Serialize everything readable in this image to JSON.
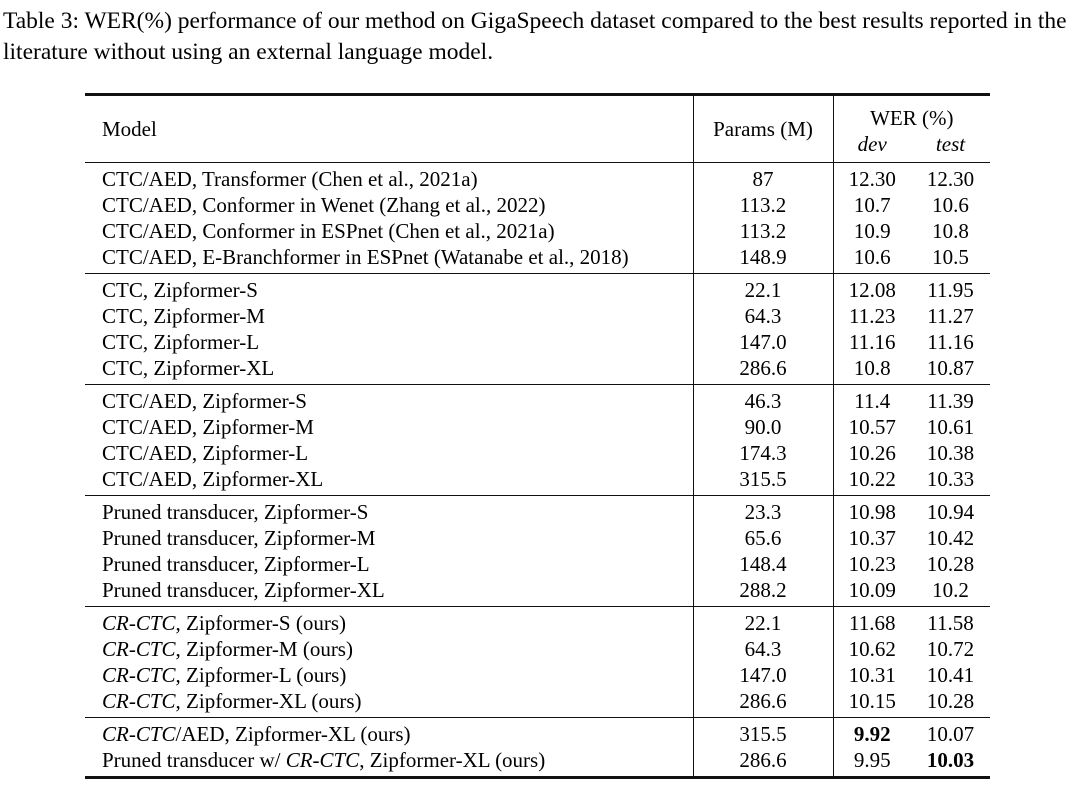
{
  "caption": "Table 3: WER(%) performance of our method on GigaSpeech dataset compared to the best results reported in the literature without using an external language model.",
  "table": {
    "headers": {
      "model": "Model",
      "params": "Params (M)",
      "wer": "WER (%)",
      "dev": "dev",
      "test": "test"
    },
    "groups": [
      {
        "rows": [
          {
            "model": [
              {
                "text": "CTC/AED, Transformer (Chen et al., 2021a)"
              }
            ],
            "params": "87",
            "dev": "12.30",
            "test": "12.30"
          },
          {
            "model": [
              {
                "text": "CTC/AED, Conformer in Wenet (Zhang et al., 2022)"
              }
            ],
            "params": "113.2",
            "dev": "10.7",
            "test": "10.6"
          },
          {
            "model": [
              {
                "text": "CTC/AED, Conformer in ESPnet (Chen et al., 2021a)"
              }
            ],
            "params": "113.2",
            "dev": "10.9",
            "test": "10.8"
          },
          {
            "model": [
              {
                "text": "CTC/AED, E-Branchformer in ESPnet (Watanabe et al., 2018)"
              }
            ],
            "params": "148.9",
            "dev": "10.6",
            "test": "10.5"
          }
        ]
      },
      {
        "rows": [
          {
            "model": [
              {
                "text": "CTC, Zipformer-S"
              }
            ],
            "params": "22.1",
            "dev": "12.08",
            "test": "11.95"
          },
          {
            "model": [
              {
                "text": "CTC, Zipformer-M"
              }
            ],
            "params": "64.3",
            "dev": "11.23",
            "test": "11.27"
          },
          {
            "model": [
              {
                "text": "CTC, Zipformer-L"
              }
            ],
            "params": "147.0",
            "dev": "11.16",
            "test": "11.16"
          },
          {
            "model": [
              {
                "text": "CTC, Zipformer-XL"
              }
            ],
            "params": "286.6",
            "dev": "10.8",
            "test": "10.87"
          }
        ]
      },
      {
        "rows": [
          {
            "model": [
              {
                "text": "CTC/AED, Zipformer-S"
              }
            ],
            "params": "46.3",
            "dev": "11.4",
            "test": "11.39"
          },
          {
            "model": [
              {
                "text": "CTC/AED, Zipformer-M"
              }
            ],
            "params": "90.0",
            "dev": "10.57",
            "test": "10.61"
          },
          {
            "model": [
              {
                "text": "CTC/AED, Zipformer-L"
              }
            ],
            "params": "174.3",
            "dev": "10.26",
            "test": "10.38"
          },
          {
            "model": [
              {
                "text": "CTC/AED, Zipformer-XL"
              }
            ],
            "params": "315.5",
            "dev": "10.22",
            "test": "10.33"
          }
        ]
      },
      {
        "rows": [
          {
            "model": [
              {
                "text": "Pruned transducer, Zipformer-S"
              }
            ],
            "params": "23.3",
            "dev": "10.98",
            "test": "10.94"
          },
          {
            "model": [
              {
                "text": "Pruned transducer, Zipformer-M"
              }
            ],
            "params": "65.6",
            "dev": "10.37",
            "test": "10.42"
          },
          {
            "model": [
              {
                "text": "Pruned transducer, Zipformer-L"
              }
            ],
            "params": "148.4",
            "dev": "10.23",
            "test": "10.28"
          },
          {
            "model": [
              {
                "text": "Pruned transducer, Zipformer-XL"
              }
            ],
            "params": "288.2",
            "dev": "10.09",
            "test": "10.2"
          }
        ]
      },
      {
        "rows": [
          {
            "model": [
              {
                "text": "CR-CTC",
                "italic": true
              },
              {
                "text": ", Zipformer-S (ours)"
              }
            ],
            "params": "22.1",
            "dev": "11.68",
            "test": "11.58"
          },
          {
            "model": [
              {
                "text": "CR-CTC",
                "italic": true
              },
              {
                "text": ", Zipformer-M (ours)"
              }
            ],
            "params": "64.3",
            "dev": "10.62",
            "test": "10.72"
          },
          {
            "model": [
              {
                "text": "CR-CTC",
                "italic": true
              },
              {
                "text": ", Zipformer-L (ours)"
              }
            ],
            "params": "147.0",
            "dev": "10.31",
            "test": "10.41"
          },
          {
            "model": [
              {
                "text": "CR-CTC",
                "italic": true
              },
              {
                "text": ", Zipformer-XL (ours)"
              }
            ],
            "params": "286.6",
            "dev": "10.15",
            "test": "10.28"
          }
        ]
      },
      {
        "rows": [
          {
            "model": [
              {
                "text": "CR-CTC",
                "italic": true
              },
              {
                "text": "/AED, Zipformer-XL (ours)"
              }
            ],
            "params": "315.5",
            "dev": "9.92",
            "test": "10.07",
            "bold_dev": true
          },
          {
            "model": [
              {
                "text": "Pruned transducer w/ "
              },
              {
                "text": "CR-CTC",
                "italic": true
              },
              {
                "text": ", Zipformer-XL (ours)"
              }
            ],
            "params": "286.6",
            "dev": "9.95",
            "test": "10.03",
            "bold_test": true
          }
        ]
      }
    ]
  }
}
